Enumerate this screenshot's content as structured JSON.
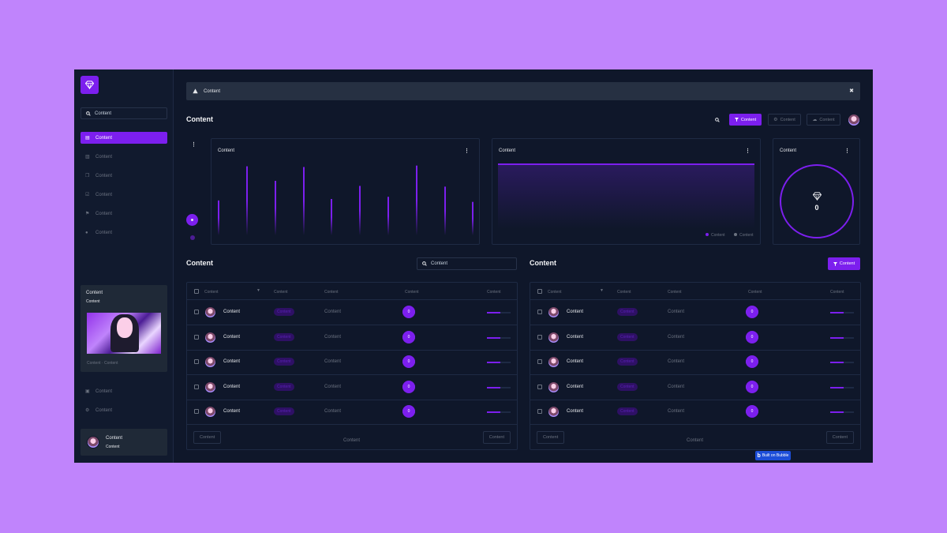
{
  "sidebar": {
    "search": "Content",
    "nav": [
      {
        "label": "Content",
        "icon": "dashboard-icon",
        "active": true
      },
      {
        "label": "Content",
        "icon": "chart-icon"
      },
      {
        "label": "Content",
        "icon": "copy-icon"
      },
      {
        "label": "Content",
        "icon": "check-icon"
      },
      {
        "label": "Content",
        "icon": "flag-icon"
      },
      {
        "label": "Content",
        "icon": "user-icon"
      }
    ],
    "card": {
      "title": "Content",
      "subtitle": "Content",
      "footer": "Content · Content"
    },
    "bottom_nav": [
      {
        "label": "Content",
        "icon": "box-icon"
      },
      {
        "label": "Content",
        "icon": "gear-icon"
      }
    ],
    "user": {
      "name": "Content",
      "role": "Content"
    }
  },
  "alert": {
    "text": "Content"
  },
  "header": {
    "title": "Content",
    "filter_button": "Content",
    "settings_button": "Content",
    "cloud_button": "Content"
  },
  "panels": {
    "bars_title": "Content",
    "area_title": "Content",
    "legend": [
      "Content",
      "Content"
    ],
    "circle_title": "Content",
    "circle_value": "0"
  },
  "chart_data": [
    {
      "type": "bar",
      "values": [
        48,
        95,
        75,
        94,
        50,
        68,
        53,
        96,
        67,
        46
      ]
    },
    {
      "type": "area",
      "values": [
        100,
        100
      ]
    }
  ],
  "tables": [
    {
      "title": "Content",
      "search": "Content",
      "headers": [
        "Content",
        "Content",
        "Content",
        "Content",
        "Content"
      ],
      "rows": [
        {
          "name": "Content",
          "badge": "Content",
          "col": "Content",
          "count": "0",
          "progress": 0.55
        },
        {
          "name": "Content",
          "badge": "Content",
          "col": "Content",
          "count": "0",
          "progress": 0.55
        },
        {
          "name": "Content",
          "badge": "Content",
          "col": "Content",
          "count": "0",
          "progress": 0.55
        },
        {
          "name": "Content",
          "badge": "Content",
          "col": "Content",
          "count": "0",
          "progress": 0.55
        },
        {
          "name": "Content",
          "badge": "Content",
          "col": "Content",
          "count": "0",
          "progress": 0.55
        }
      ],
      "prev": "Content",
      "page": "Content",
      "next": "Content"
    },
    {
      "title": "Content",
      "filter_button": "Content",
      "headers": [
        "Content",
        "Content",
        "Content",
        "Content",
        "Content"
      ],
      "rows": [
        {
          "name": "Content",
          "badge": "Content",
          "col": "Content",
          "count": "0",
          "progress": 0.55
        },
        {
          "name": "Content",
          "badge": "Content",
          "col": "Content",
          "count": "0",
          "progress": 0.55
        },
        {
          "name": "Content",
          "badge": "Content",
          "col": "Content",
          "count": "0",
          "progress": 0.55
        },
        {
          "name": "Content",
          "badge": "Content",
          "col": "Content",
          "count": "0",
          "progress": 0.55
        },
        {
          "name": "Content",
          "badge": "Content",
          "col": "Content",
          "count": "0",
          "progress": 0.55
        }
      ],
      "prev": "Content",
      "page": "Content",
      "next": "Content"
    }
  ],
  "badge_bubble": "Built on Bubble",
  "colors": {
    "accent": "#7c1fee",
    "background": "#0f172a",
    "page": "#c084fc"
  }
}
